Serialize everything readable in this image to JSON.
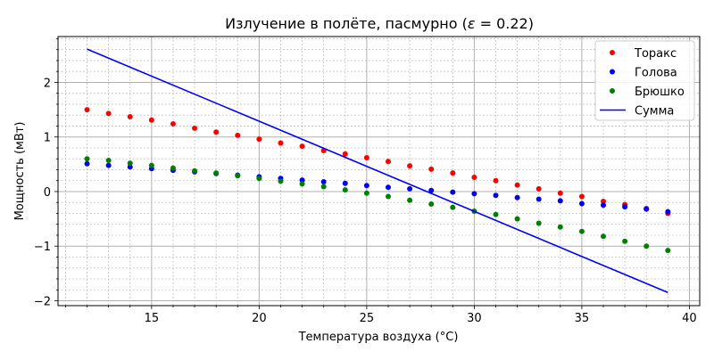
{
  "chart_data": {
    "type": "scatter",
    "title": "Излучение в полёте, пасмурно (ε = 0.22)",
    "title_prefix": "Излучение в полёте, пасмурно (",
    "title_symbol": "ε",
    "title_suffix": " = 0.22)",
    "xlabel": "Температура воздуха (°C)",
    "ylabel": "Мощность (мВт)",
    "xlim": [
      10.65,
      40.48
    ],
    "ylim": [
      -2.09,
      2.84
    ],
    "xticks": [
      15,
      20,
      25,
      30,
      35,
      40
    ],
    "yticks": [
      -2,
      -1,
      0,
      1,
      2
    ],
    "x_minor_step": 1,
    "y_minor_step": 0.2,
    "grid": true,
    "legend_position": "upper right",
    "x": [
      12,
      13,
      14,
      15,
      16,
      17,
      18,
      19,
      20,
      21,
      22,
      23,
      24,
      25,
      26,
      27,
      28,
      29,
      30,
      31,
      32,
      33,
      34,
      35,
      36,
      37,
      38,
      39
    ],
    "series": [
      {
        "name": "Торакс",
        "kind": "points",
        "color": "#ff0000",
        "values": [
          1.5,
          1.43,
          1.37,
          1.31,
          1.24,
          1.16,
          1.09,
          1.03,
          0.96,
          0.89,
          0.83,
          0.75,
          0.69,
          0.62,
          0.55,
          0.47,
          0.41,
          0.34,
          0.26,
          0.2,
          0.12,
          0.05,
          -0.03,
          -0.09,
          -0.18,
          -0.24,
          -0.31,
          -0.4
        ]
      },
      {
        "name": "Голова",
        "kind": "points",
        "color": "#0000ff",
        "values": [
          0.51,
          0.48,
          0.45,
          0.42,
          0.39,
          0.36,
          0.33,
          0.3,
          0.27,
          0.24,
          0.21,
          0.18,
          0.15,
          0.11,
          0.08,
          0.05,
          0.02,
          -0.01,
          -0.04,
          -0.07,
          -0.11,
          -0.14,
          -0.17,
          -0.22,
          -0.25,
          -0.28,
          -0.32,
          -0.37
        ]
      },
      {
        "name": "Брюшко",
        "kind": "points",
        "color": "#008000",
        "values": [
          0.6,
          0.57,
          0.52,
          0.48,
          0.43,
          0.38,
          0.34,
          0.29,
          0.24,
          0.19,
          0.14,
          0.09,
          0.03,
          -0.03,
          -0.09,
          -0.16,
          -0.23,
          -0.29,
          -0.36,
          -0.42,
          -0.5,
          -0.58,
          -0.65,
          -0.73,
          -0.82,
          -0.91,
          -1.0,
          -1.08
        ]
      },
      {
        "name": "Сумма",
        "kind": "line",
        "color": "#0000ff",
        "x": [
          12,
          39
        ],
        "values": [
          2.61,
          -1.85
        ]
      }
    ]
  }
}
